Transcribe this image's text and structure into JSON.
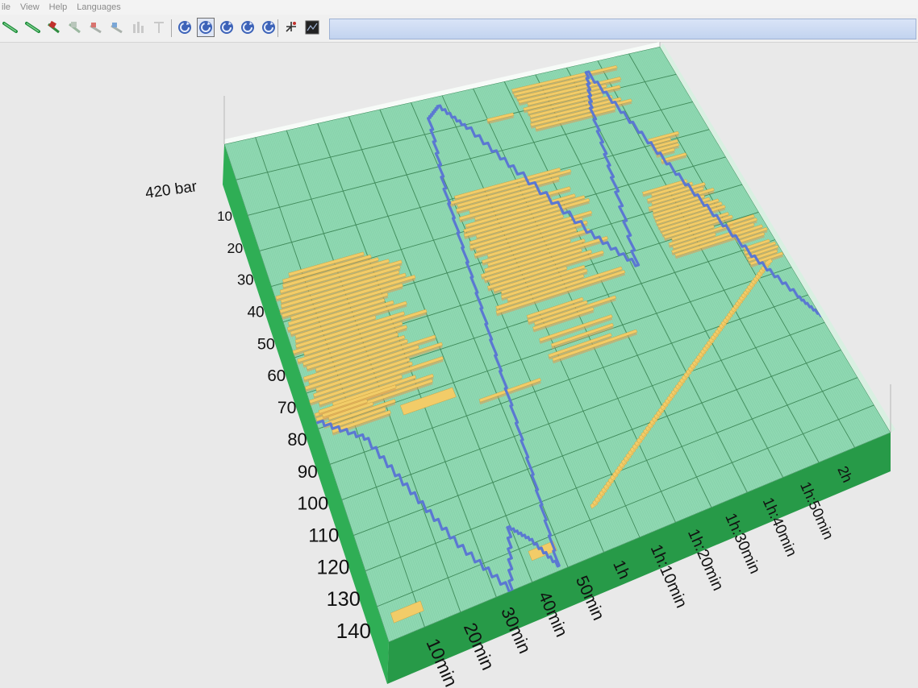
{
  "menu": {
    "items": [
      "ile",
      "View",
      "Help",
      "Languages"
    ]
  },
  "toolbar": {
    "buttons": [
      {
        "icon": "line-tool-green-icon"
      },
      {
        "icon": "line-tool-green-icon"
      },
      {
        "icon": "red-tool-icon"
      },
      {
        "icon": "gray-tool-icon"
      },
      {
        "icon": "red-gray-tool-icon"
      },
      {
        "icon": "blue-gray-tool-icon"
      },
      {
        "icon": "disabled-bars-icon"
      },
      {
        "icon": "disabled-t-icon"
      },
      {
        "icon": "rotate-view-icon"
      },
      {
        "icon": "rotate-view-icon",
        "pressed": true
      },
      {
        "icon": "rotate-view-icon"
      },
      {
        "icon": "rotate-view-icon"
      },
      {
        "icon": "rotate-view-icon"
      },
      {
        "icon": "axis-tool-icon"
      },
      {
        "icon": "dark-view-icon"
      }
    ]
  },
  "chart_data": {
    "type": "3d-surface",
    "pressure_label": "420 bar",
    "y_ticks": [
      "10",
      "20",
      "30",
      "40",
      "50",
      "60",
      "70",
      "80",
      "90",
      "100",
      "110",
      "120",
      "130",
      "140"
    ],
    "x_ticks": [
      "10min",
      "20min",
      "30min",
      "40min",
      "50min",
      "1h",
      "1h:10min",
      "1h:20min",
      "1h:30min",
      "1h:40min",
      "1h:50min",
      "2h"
    ],
    "colors": {
      "surface": "#8fd8b2",
      "surface_edge": "#2fae55",
      "grid": "#3f8a5a",
      "bars": "#f2cc68",
      "bar_shadow": "#d9a25a",
      "trace": "#5b78d2",
      "background": "#e9e9e9"
    },
    "trace_shape": "triangular ramps",
    "high_regions": [
      {
        "time": "0–40min",
        "range": "40–80"
      },
      {
        "time": "40min–1h:30min",
        "range": "30–70"
      },
      {
        "time": "1h:10min–1h:40min",
        "range": "0–10"
      },
      {
        "time": "1h:30min–2h",
        "range": "30–70"
      }
    ]
  }
}
